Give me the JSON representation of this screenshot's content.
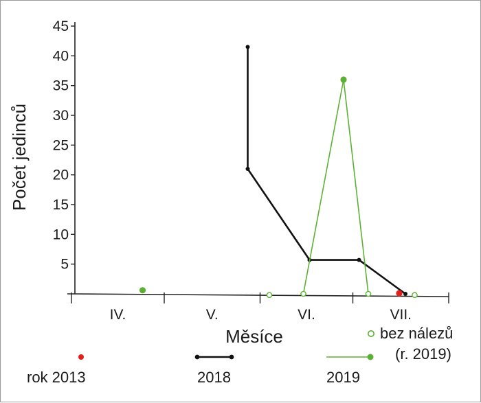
{
  "chart_data": {
    "type": "line",
    "ylabel": "Počet jedinců",
    "xlabel": "Měsíce",
    "ylim": [
      0,
      45
    ],
    "yticks": [
      5,
      10,
      15,
      20,
      25,
      30,
      35,
      40,
      45
    ],
    "x_unit": "month (day-of-year scale)",
    "xlim": [
      91,
      213
    ],
    "month_labels": [
      {
        "label": "IV.",
        "from": 91,
        "to": 121
      },
      {
        "label": "V.",
        "from": 121,
        "to": 152
      },
      {
        "label": "VI.",
        "from": 152,
        "to": 182
      },
      {
        "label": "VII.",
        "from": 182,
        "to": 213
      }
    ],
    "series": [
      {
        "name": "2018",
        "color": "#111111",
        "style": "line-with-points",
        "points": [
          [
            148,
            41.5
          ],
          [
            148,
            21
          ],
          [
            168,
            5.7
          ],
          [
            184,
            5.7
          ],
          [
            199,
            0
          ]
        ]
      },
      {
        "name": "2019",
        "color": "#5cb135",
        "style": "line-with-points",
        "points": [
          [
            166,
            0
          ],
          [
            179,
            36
          ],
          [
            187,
            0
          ]
        ],
        "hollow_indices": [
          0,
          2
        ]
      },
      {
        "name": "rok 2013",
        "color": "#e0201b",
        "style": "points",
        "points": [
          [
            197,
            0.1
          ]
        ]
      }
    ],
    "extra_points": [
      {
        "series": "2019",
        "x": 114,
        "y": 0.6,
        "filled": true
      },
      {
        "series": "2019",
        "x": 155,
        "y": -0.2,
        "filled": false
      },
      {
        "series": "2019",
        "x": 202,
        "y": -0.2,
        "filled": false
      }
    ],
    "no_record_note": {
      "line1": "bez nálezů",
      "line2": "(r. 2019)"
    },
    "legend": [
      {
        "label": "rok 2013",
        "kind": "dot",
        "color": "#e0201b"
      },
      {
        "label": "2018",
        "kind": "line-dots",
        "color": "#111111"
      },
      {
        "label": "2019",
        "kind": "line-dot",
        "color": "#5cb135"
      }
    ]
  }
}
